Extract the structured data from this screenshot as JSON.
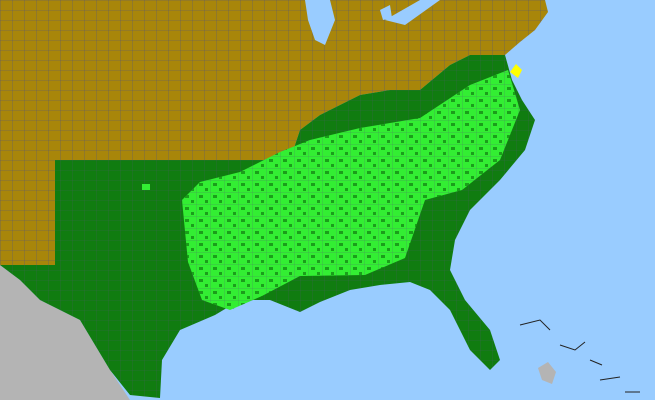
{
  "map": {
    "colors": {
      "ocean": "#99ccff",
      "outside_range": "#a8860a",
      "present": "#107c10",
      "highlighted_counties": "#33ee33",
      "other_country": "#b4b4b4",
      "special": "#ffff00",
      "county_borders": "#555577"
    }
  }
}
